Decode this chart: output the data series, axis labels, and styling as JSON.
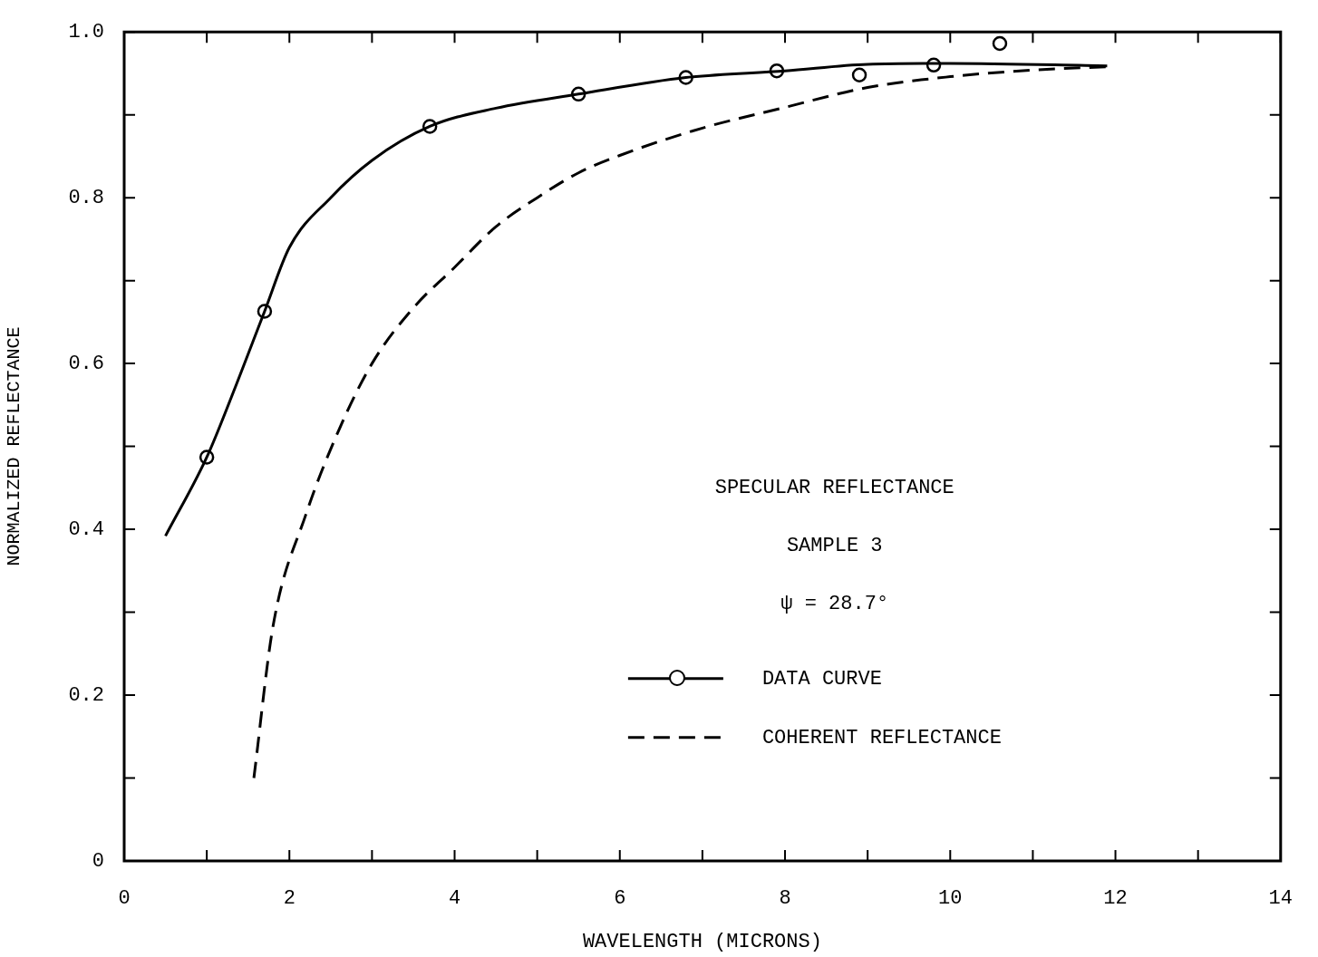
{
  "chart_data": {
    "type": "line",
    "xlabel": "WAVELENGTH (MICRONS)",
    "ylabel": "NORMALIZED REFLECTANCE",
    "xlim": [
      0,
      14
    ],
    "ylim": [
      0,
      1
    ],
    "xticks": [
      0,
      {
        "value": 1,
        "label": null
      },
      2,
      {
        "value": 3,
        "label": null
      },
      4,
      {
        "value": 5,
        "label": null
      },
      6,
      {
        "value": 7,
        "label": null
      },
      8,
      {
        "value": 9,
        "label": null
      },
      10,
      {
        "value": 11,
        "label": null
      },
      12,
      {
        "value": 13,
        "label": null
      },
      14
    ],
    "yticks": [
      0,
      {
        "value": 0.1,
        "label": null
      },
      0.2,
      {
        "value": 0.3,
        "label": null
      },
      0.4,
      {
        "value": 0.5,
        "label": null
      },
      0.6,
      {
        "value": 0.7,
        "label": null
      },
      0.8,
      {
        "value": 0.9,
        "label": null
      },
      {
        "value": 1,
        "label": "1.0"
      }
    ],
    "annotations": [
      "SPECULAR REFLECTANCE",
      "SAMPLE 3",
      "ψ = 28.7°"
    ],
    "legend": "bottom right",
    "series": [
      {
        "name": "DATA CURVE",
        "type": "line",
        "color": "#000000",
        "marker": "none",
        "line_style": "solid",
        "x": [
          0.5,
          1.0,
          1.3,
          1.7,
          2.0,
          2.5,
          3.0,
          3.7,
          4.5,
          5.5,
          6.8,
          8.0,
          9.0,
          10.0,
          11.9
        ],
        "values": [
          0.392,
          0.487,
          0.56,
          0.663,
          0.74,
          0.8,
          0.845,
          0.886,
          0.908,
          0.925,
          0.945,
          0.953,
          0.961,
          0.962,
          0.959
        ]
      },
      {
        "type": "scatter",
        "color": "#000000",
        "marker": "circle",
        "x": [
          1.0,
          1.7,
          3.7,
          5.5,
          6.8,
          7.9,
          8.9,
          9.8,
          10.6
        ],
        "values": [
          0.487,
          0.663,
          0.886,
          0.925,
          0.945,
          0.953,
          0.948,
          0.96,
          0.986
        ]
      },
      {
        "name": "COHERENT REFLECTANCE",
        "type": "line",
        "color": "#000000",
        "marker": "none",
        "line_style": "dashed",
        "x": [
          1.57,
          1.8,
          2.2,
          2.6,
          3.0,
          3.5,
          4.0,
          4.5,
          5.0,
          5.5,
          6.0,
          7.0,
          8.0,
          9.0,
          10.0,
          11.0,
          11.9
        ],
        "values": [
          0.1,
          0.282,
          0.418,
          0.52,
          0.6,
          0.667,
          0.716,
          0.765,
          0.8,
          0.83,
          0.851,
          0.884,
          0.909,
          0.933,
          0.946,
          0.954,
          0.958
        ]
      }
    ]
  }
}
